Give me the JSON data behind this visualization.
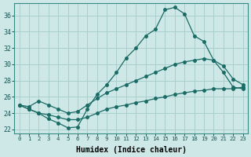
{
  "xlabel": "Humidex (Indice chaleur)",
  "bg_color": "#cde8e6",
  "grid_color": "#aacece",
  "line_color": "#1a6b65",
  "xlim": [
    -0.5,
    23.5
  ],
  "ylim": [
    21.5,
    37.5
  ],
  "xticks": [
    0,
    1,
    2,
    3,
    4,
    5,
    6,
    7,
    8,
    9,
    10,
    11,
    12,
    13,
    14,
    15,
    16,
    17,
    18,
    19,
    20,
    21,
    22,
    23
  ],
  "yticks": [
    22,
    24,
    26,
    28,
    30,
    32,
    34,
    36
  ],
  "line1_x": [
    0,
    1,
    2,
    3,
    4,
    5,
    6,
    7,
    8,
    9,
    10,
    11,
    12,
    13,
    14,
    15,
    16,
    17,
    18,
    19,
    20,
    21,
    22,
    23
  ],
  "line1_y": [
    25.0,
    24.5,
    24.0,
    23.3,
    22.8,
    22.2,
    22.3,
    24.5,
    26.3,
    27.5,
    29.0,
    30.8,
    32.0,
    33.5,
    34.3,
    36.7,
    37.0,
    36.2,
    33.5,
    32.8,
    30.5,
    29.0,
    27.2,
    27.0
  ],
  "line2_x": [
    0,
    1,
    2,
    3,
    4,
    5,
    6,
    7,
    8,
    9,
    10,
    11,
    12,
    13,
    14,
    15,
    16,
    17,
    18,
    19,
    20,
    21,
    22,
    23
  ],
  "line2_y": [
    25.0,
    24.8,
    25.5,
    25.0,
    24.5,
    24.0,
    24.2,
    25.0,
    25.8,
    26.5,
    27.0,
    27.5,
    28.0,
    28.5,
    29.0,
    29.5,
    30.0,
    30.3,
    30.5,
    30.7,
    30.5,
    29.8,
    28.2,
    27.5
  ],
  "line3_x": [
    0,
    1,
    2,
    3,
    4,
    5,
    6,
    7,
    8,
    9,
    10,
    11,
    12,
    13,
    14,
    15,
    16,
    17,
    18,
    19,
    20,
    21,
    22,
    23
  ],
  "line3_y": [
    25.0,
    24.5,
    24.0,
    23.8,
    23.5,
    23.2,
    23.2,
    23.5,
    24.0,
    24.5,
    24.8,
    25.0,
    25.3,
    25.5,
    25.8,
    26.0,
    26.3,
    26.5,
    26.7,
    26.8,
    27.0,
    27.0,
    27.0,
    27.2
  ]
}
